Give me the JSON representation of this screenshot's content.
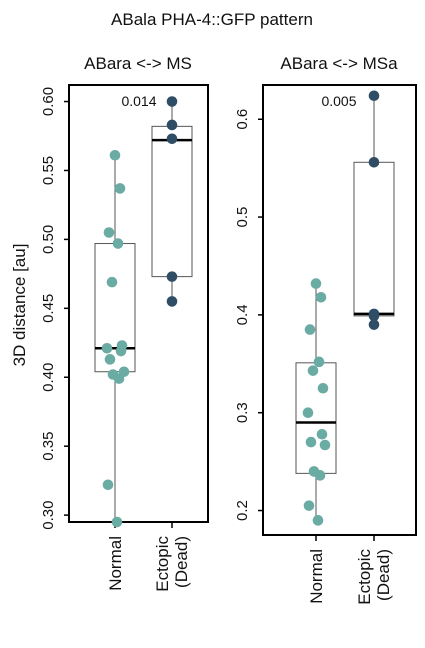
{
  "figure_title": "ABala PHA-4::GFP pattern",
  "y_axis_label": "3D distance [au]",
  "colors": {
    "normal_point": "#6aaba3",
    "ectopic_point": "#2f4e66",
    "box_stroke": "#555555",
    "median": "#000000",
    "frame": "#000000"
  },
  "chart_data": [
    {
      "type": "box",
      "title": "ABara <-> MS",
      "ylabel": "3D distance [au]",
      "ylim": [
        0.295,
        0.612
      ],
      "yticks": [
        "0.30",
        "0.35",
        "0.40",
        "0.45",
        "0.50",
        "0.55",
        "0.60"
      ],
      "categories": [
        "Normal",
        "Ectopic (Dead)"
      ],
      "annotation": "0.014",
      "boxes": [
        {
          "category": "Normal",
          "min": 0.295,
          "q1": 0.404,
          "median": 0.421,
          "q3": 0.497,
          "max": 0.561
        },
        {
          "category": "Ectopic (Dead)",
          "min": 0.455,
          "q1": 0.473,
          "median": 0.572,
          "q3": 0.582,
          "max": 0.6
        }
      ],
      "points": [
        {
          "category": "Normal",
          "values": [
            0.561,
            0.537,
            0.505,
            0.497,
            0.469,
            0.423,
            0.421,
            0.419,
            0.413,
            0.404,
            0.402,
            0.399,
            0.322,
            0.295
          ]
        },
        {
          "category": "Ectopic (Dead)",
          "values": [
            0.6,
            0.583,
            0.573,
            0.473,
            0.455
          ]
        }
      ]
    },
    {
      "type": "box",
      "title": "ABara <-> MSa",
      "ylabel": "",
      "ylim": [
        0.175,
        0.635
      ],
      "yticks": [
        "0.2",
        "0.3",
        "0.4",
        "0.5",
        "0.6"
      ],
      "categories": [
        "Normal",
        "Ectopic (Dead)"
      ],
      "annotation": "0.005",
      "boxes": [
        {
          "category": "Normal",
          "min": 0.19,
          "q1": 0.238,
          "median": 0.29,
          "q3": 0.351,
          "max": 0.432
        },
        {
          "category": "Ectopic (Dead)",
          "min": 0.39,
          "q1": 0.399,
          "median": 0.401,
          "q3": 0.556,
          "max": 0.624
        }
      ],
      "points": [
        {
          "category": "Normal",
          "values": [
            0.432,
            0.418,
            0.385,
            0.352,
            0.343,
            0.325,
            0.3,
            0.278,
            0.27,
            0.267,
            0.24,
            0.236,
            0.205,
            0.19
          ]
        },
        {
          "category": "Ectopic (Dead)",
          "values": [
            0.624,
            0.556,
            0.401,
            0.399,
            0.39
          ]
        }
      ]
    }
  ]
}
